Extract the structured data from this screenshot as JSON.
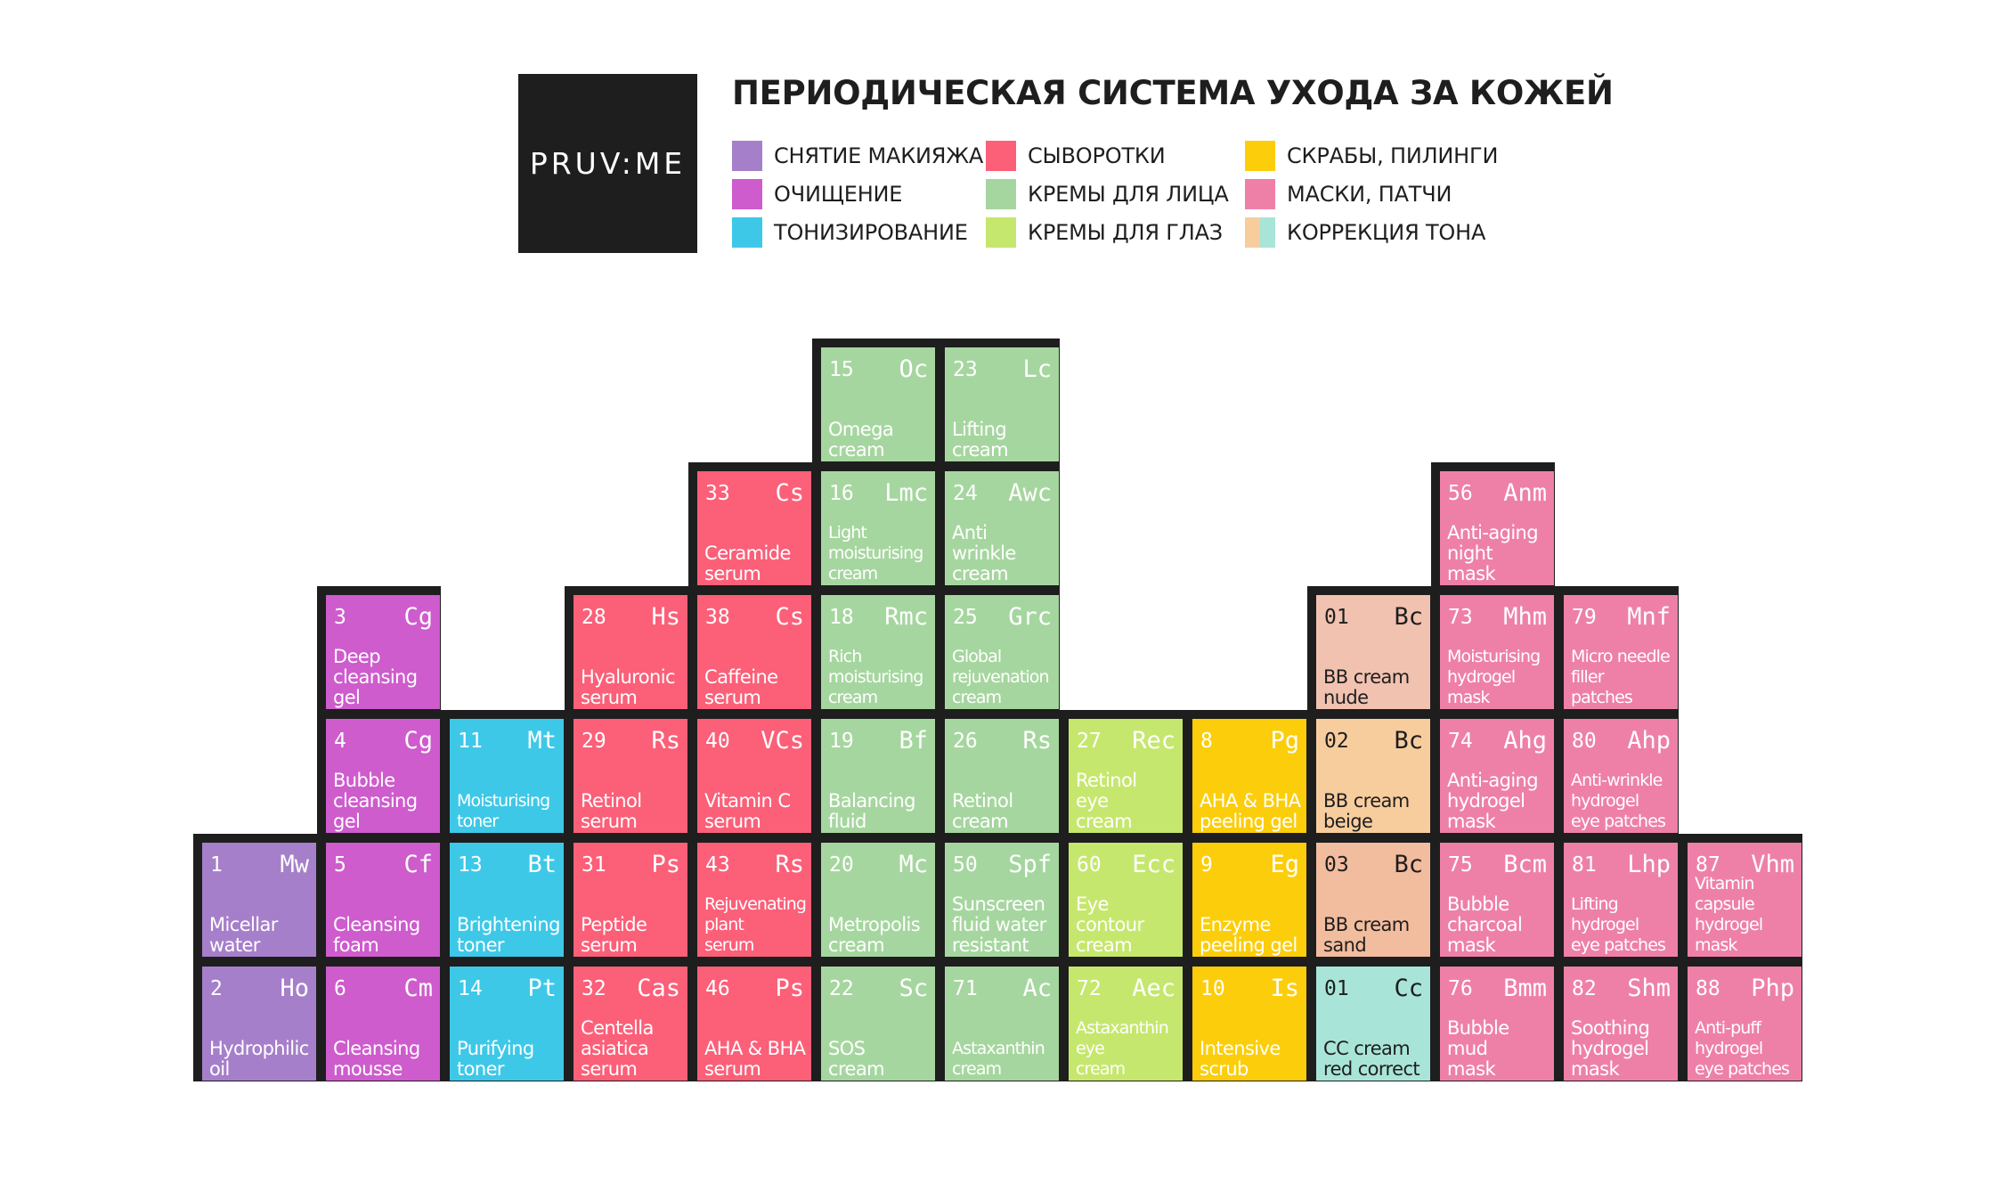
{
  "header": {
    "logo": "PRUV:ME",
    "title": "ПЕРИОДИЧЕСКАЯ СИСТЕМА УХОДА ЗА КОЖЕЙ"
  },
  "legend": [
    {
      "label": "СНЯТИЕ МАКИЯЖА",
      "colors": [
        "#a67fca"
      ]
    },
    {
      "label": "ОЧИЩЕНИЕ",
      "colors": [
        "#ce5ccd"
      ]
    },
    {
      "label": "ТОНИЗИРОВАНИЕ",
      "colors": [
        "#3ec8e8"
      ]
    },
    {
      "label": "СЫВОРОТКИ",
      "colors": [
        "#fc5f78"
      ]
    },
    {
      "label": "КРЕМЫ ДЛЯ ЛИЦА",
      "colors": [
        "#a6d69f"
      ]
    },
    {
      "label": "КРЕМЫ ДЛЯ ГЛАЗ",
      "colors": [
        "#c6e76d"
      ]
    },
    {
      "label": "СКРАБЫ, ПИЛИНГИ",
      "colors": [
        "#fccd0a"
      ]
    },
    {
      "label": "МАСКИ, ПАТЧИ",
      "colors": [
        "#ee80a8"
      ]
    },
    {
      "label": "КОРРЕКЦИЯ ТОНА",
      "colors": [
        "#f8cd9e",
        "#a8e5d8"
      ]
    }
  ],
  "elements": [
    {
      "col": 1,
      "row": 4,
      "num": "1",
      "sym": "Mw",
      "name": "Micellar\nwater",
      "color": "#a67fca"
    },
    {
      "col": 1,
      "row": 5,
      "num": "2",
      "sym": "Ho",
      "name": "Hydrophilic\noil",
      "color": "#a67fca"
    },
    {
      "col": 2,
      "row": 2,
      "num": "3",
      "sym": "Cg",
      "name": "Deep\ncleansing\ngel",
      "color": "#ce5ccd"
    },
    {
      "col": 2,
      "row": 3,
      "num": "4",
      "sym": "Cg",
      "name": "Bubble\ncleansing\ngel",
      "color": "#ce5ccd"
    },
    {
      "col": 2,
      "row": 4,
      "num": "5",
      "sym": "Cf",
      "name": "Cleansing\nfoam",
      "color": "#ce5ccd"
    },
    {
      "col": 2,
      "row": 5,
      "num": "6",
      "sym": "Cm",
      "name": "Cleansing\nmousse",
      "color": "#ce5ccd"
    },
    {
      "col": 3,
      "row": 3,
      "num": "11",
      "sym": "Mt",
      "name": "Moisturising\ntoner",
      "color": "#3ec8e8",
      "small": true
    },
    {
      "col": 3,
      "row": 4,
      "num": "13",
      "sym": "Bt",
      "name": "Brightening\ntoner",
      "color": "#3ec8e8"
    },
    {
      "col": 3,
      "row": 5,
      "num": "14",
      "sym": "Pt",
      "name": "Purifying\ntoner",
      "color": "#3ec8e8"
    },
    {
      "col": 4,
      "row": 2,
      "num": "28",
      "sym": "Hs",
      "name": "Hyaluronic\nserum",
      "color": "#fc5f78"
    },
    {
      "col": 4,
      "row": 3,
      "num": "29",
      "sym": "Rs",
      "name": "Retinol\nserum",
      "color": "#fc5f78"
    },
    {
      "col": 4,
      "row": 4,
      "num": "31",
      "sym": "Ps",
      "name": "Peptide\nserum",
      "color": "#fc5f78"
    },
    {
      "col": 4,
      "row": 5,
      "num": "32",
      "sym": "Cas",
      "name": "Centella\nasiatica\nserum",
      "color": "#fc5f78"
    },
    {
      "col": 5,
      "row": 1,
      "num": "33",
      "sym": "Cs",
      "name": "Ceramide\nserum",
      "color": "#fc5f78"
    },
    {
      "col": 5,
      "row": 2,
      "num": "38",
      "sym": "Cs",
      "name": "Caffeine\nserum",
      "color": "#fc5f78"
    },
    {
      "col": 5,
      "row": 3,
      "num": "40",
      "sym": "VCs",
      "name": "Vitamin C\nserum",
      "color": "#fc5f78"
    },
    {
      "col": 5,
      "row": 4,
      "num": "43",
      "sym": "Rs",
      "name": "Rejuvenating\nplant\nserum",
      "color": "#fc5f78",
      "small": true
    },
    {
      "col": 5,
      "row": 5,
      "num": "46",
      "sym": "Ps",
      "name": "AHA & BHA\nserum",
      "color": "#fc5f78"
    },
    {
      "col": 6,
      "row": 0,
      "num": "15",
      "sym": "Oc",
      "name": "Omega\ncream",
      "color": "#a6d69f"
    },
    {
      "col": 6,
      "row": 1,
      "num": "16",
      "sym": "Lmc",
      "name": "Light\nmoisturising\ncream",
      "color": "#a6d69f",
      "small": true
    },
    {
      "col": 6,
      "row": 2,
      "num": "18",
      "sym": "Rmc",
      "name": "Rich\nmoisturising\ncream",
      "color": "#a6d69f",
      "small": true
    },
    {
      "col": 6,
      "row": 3,
      "num": "19",
      "sym": "Bf",
      "name": "Balancing\nfluid",
      "color": "#a6d69f"
    },
    {
      "col": 6,
      "row": 4,
      "num": "20",
      "sym": "Mc",
      "name": "Metropolis\ncream",
      "color": "#a6d69f"
    },
    {
      "col": 6,
      "row": 5,
      "num": "22",
      "sym": "Sc",
      "name": "SOS\ncream",
      "color": "#a6d69f"
    },
    {
      "col": 7,
      "row": 0,
      "num": "23",
      "sym": "Lc",
      "name": "Lifting\ncream",
      "color": "#a6d69f"
    },
    {
      "col": 7,
      "row": 1,
      "num": "24",
      "sym": "Awc",
      "name": "Anti\nwrinkle\ncream",
      "color": "#a6d69f"
    },
    {
      "col": 7,
      "row": 2,
      "num": "25",
      "sym": "Grc",
      "name": "Global\nrejuvenation\ncream",
      "color": "#a6d69f",
      "small": true
    },
    {
      "col": 7,
      "row": 3,
      "num": "26",
      "sym": "Rs",
      "name": "Retinol\ncream",
      "color": "#a6d69f"
    },
    {
      "col": 7,
      "row": 4,
      "num": "50",
      "sym": "Spf",
      "name": "Sunscreen\nfluid water\nresistant",
      "color": "#a6d69f"
    },
    {
      "col": 7,
      "row": 5,
      "num": "71",
      "sym": "Ac",
      "name": "Astaxanthin\ncream",
      "color": "#a6d69f",
      "small": true
    },
    {
      "col": 8,
      "row": 3,
      "num": "27",
      "sym": "Rec",
      "name": "Retinol\neye\ncream",
      "color": "#c6e76d"
    },
    {
      "col": 8,
      "row": 4,
      "num": "60",
      "sym": "Ecc",
      "name": "Eye\ncontour\ncream",
      "color": "#c6e76d"
    },
    {
      "col": 8,
      "row": 5,
      "num": "72",
      "sym": "Aec",
      "name": "Astaxanthin\neye\ncream",
      "color": "#c6e76d",
      "small": true
    },
    {
      "col": 9,
      "row": 3,
      "num": "8",
      "sym": "Pg",
      "name": "AHA & BHA\npeeling gel",
      "color": "#fccd0a"
    },
    {
      "col": 9,
      "row": 4,
      "num": "9",
      "sym": "Eg",
      "name": "Enzyme\npeeling gel",
      "color": "#fccd0a"
    },
    {
      "col": 9,
      "row": 5,
      "num": "10",
      "sym": "Is",
      "name": "Intensive\nscrub",
      "color": "#fccd0a"
    },
    {
      "col": 10,
      "row": 2,
      "num": "01",
      "sym": "Bc",
      "name": "BB cream\nnude",
      "color": "#f2c2b0",
      "dark": true
    },
    {
      "col": 10,
      "row": 3,
      "num": "02",
      "sym": "Bc",
      "name": "BB cream\nbeige",
      "color": "#f8cd9e",
      "dark": true
    },
    {
      "col": 10,
      "row": 4,
      "num": "03",
      "sym": "Bc",
      "name": "BB cream\nsand",
      "color": "#f2bc9e",
      "dark": true
    },
    {
      "col": 10,
      "row": 5,
      "num": "01",
      "sym": "Cc",
      "name": "CC cream\nred correct",
      "color": "#a8e5d8",
      "dark": true
    },
    {
      "col": 11,
      "row": 1,
      "num": "56",
      "sym": "Anm",
      "name": "Anti-aging\nnight\nmask",
      "color": "#ee80a8"
    },
    {
      "col": 11,
      "row": 2,
      "num": "73",
      "sym": "Mhm",
      "name": "Moisturising\nhydrogel\nmask",
      "color": "#ee80a8",
      "small": true
    },
    {
      "col": 11,
      "row": 3,
      "num": "74",
      "sym": "Ahg",
      "name": "Anti-aging\nhydrogel\nmask",
      "color": "#ee80a8"
    },
    {
      "col": 11,
      "row": 4,
      "num": "75",
      "sym": "Bcm",
      "name": "Bubble\ncharcoal\nmask",
      "color": "#ee80a8"
    },
    {
      "col": 11,
      "row": 5,
      "num": "76",
      "sym": "Bmm",
      "name": "Bubble\nmud\nmask",
      "color": "#ee80a8"
    },
    {
      "col": 12,
      "row": 2,
      "num": "79",
      "sym": "Mnf",
      "name": "Micro needle\nfiller\npatches",
      "color": "#ee80a8",
      "small": true
    },
    {
      "col": 12,
      "row": 3,
      "num": "80",
      "sym": "Ahp",
      "name": "Anti-wrinkle\nhydrogel\neye patches",
      "color": "#ee80a8",
      "small": true
    },
    {
      "col": 12,
      "row": 4,
      "num": "81",
      "sym": "Lhp",
      "name": "Lifting\nhydrogel\neye patches",
      "color": "#ee80a8",
      "small": true
    },
    {
      "col": 12,
      "row": 5,
      "num": "82",
      "sym": "Shm",
      "name": "Soothing\nhydrogel\nmask",
      "color": "#ee80a8"
    },
    {
      "col": 13,
      "row": 4,
      "num": "87",
      "sym": "Vhm",
      "name": "Vitamin\ncapsule\nhydrogel mask",
      "color": "#ee80a8",
      "small": true
    },
    {
      "col": 13,
      "row": 5,
      "num": "88",
      "sym": "Php",
      "name": "Anti-puff\nhydrogel\neye patches",
      "color": "#ee80a8",
      "small": true
    }
  ]
}
